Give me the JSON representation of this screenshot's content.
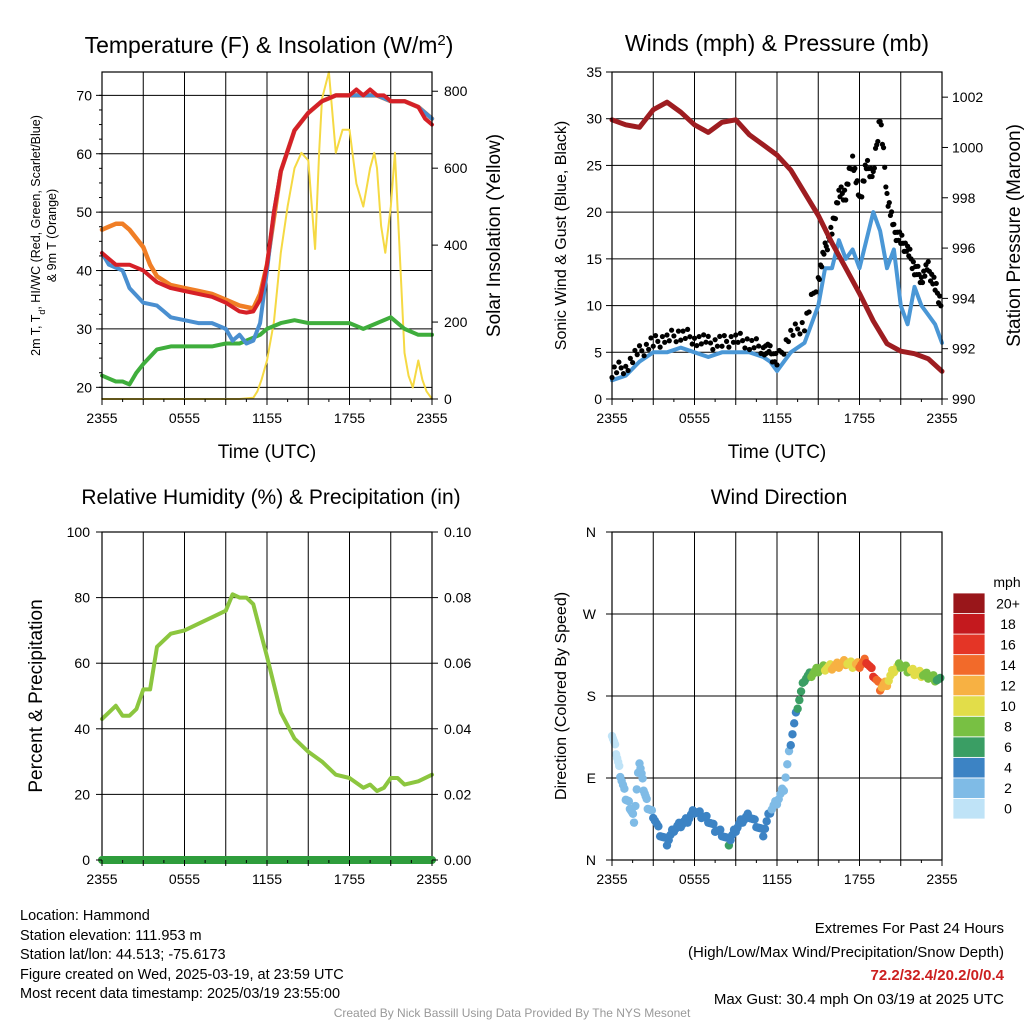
{
  "colors": {
    "red": "#d62027",
    "orange": "#f07e26",
    "blue": "#4a8fd0",
    "green": "#3fae3c",
    "yellow": "#f5d943",
    "maroon": "#9e1d21",
    "lightblue": "#4a97d6",
    "rh": "#8cc63f",
    "precip": "#2e9d3c",
    "extremes": "#cc1f1f"
  },
  "time_ticks": [
    "2355",
    "0555",
    "1155",
    "1755",
    "2355"
  ],
  "panels": {
    "temp": {
      "title": "Temperature (F) & Insolation (W/m²)",
      "title_main": "Temperature (F) & Insolation (W/m",
      "title_sup": "2",
      "title_end": ")",
      "ylabel_line1": "2m T, T",
      "ylabel_sub": "d",
      "ylabel_line1b": ", HI/WC (Red, Green, Scarlet/Blue)",
      "ylabel_line2": "& 9m T (Orange)",
      "y2label": "Solar Insolation (Yellow)",
      "xlabel": "Time (UTC)",
      "yticks": [
        "20",
        "30",
        "40",
        "50",
        "60",
        "70"
      ],
      "y2ticks": [
        "0",
        "200",
        "400",
        "600",
        "800"
      ]
    },
    "wind": {
      "title": "Winds (mph) & Pressure (mb)",
      "ylabel": "Sonic Wind & Gust (Blue, Black)",
      "y2label": "Station Pressure (Maroon)",
      "xlabel": "Time (UTC)",
      "yticks": [
        "0",
        "5",
        "10",
        "15",
        "20",
        "25",
        "30",
        "35"
      ],
      "y2ticks": [
        "990",
        "992",
        "994",
        "996",
        "998",
        "1000",
        "1002"
      ]
    },
    "rh": {
      "title": "Relative Humidity (%) & Precipitation (in)",
      "ylabel": "Percent & Precipitation",
      "yticks": [
        "0",
        "20",
        "40",
        "60",
        "80",
        "100"
      ],
      "y2ticks": [
        "0.00",
        "0.02",
        "0.04",
        "0.06",
        "0.08",
        "0.10"
      ]
    },
    "dir": {
      "title": "Wind Direction",
      "ylabel": "Direction (Colored By Speed)",
      "yticks": [
        "N",
        "E",
        "S",
        "W",
        "N"
      ],
      "colorbar_title": "mph",
      "colorbar_labels": [
        "0",
        "2",
        "4",
        "6",
        "8",
        "10",
        "12",
        "14",
        "16",
        "18",
        "20+"
      ],
      "colorbar_colors": [
        "#bfe3f7",
        "#7fbbe6",
        "#3c83c4",
        "#3a9e64",
        "#78c043",
        "#e2dd49",
        "#f7b143",
        "#f26a2a",
        "#e43526",
        "#c4191e",
        "#99161a"
      ]
    }
  },
  "chart_data": [
    {
      "type": "line",
      "title": "Temperature (F) & Insolation (W/m²)",
      "xlabel": "Time (UTC)",
      "ylabel": "2m T, Td, HI/WC (Red, Green, Scarlet/Blue) & 9m T (Orange)",
      "y2label": "Solar Insolation (Yellow)",
      "x": [
        "2355",
        "0555",
        "1155",
        "1755",
        "2355"
      ],
      "ylim": [
        18,
        74
      ],
      "y2lim": [
        0,
        850
      ],
      "xlim": [
        0,
        24
      ],
      "series": [
        {
          "name": "2m T",
          "axis": "left",
          "x": [
            0,
            0.5,
            1,
            2,
            3,
            3.5,
            4,
            5,
            6,
            7,
            8,
            9,
            10,
            10.5,
            11,
            11.5,
            12,
            12.5,
            13,
            14,
            15,
            16,
            17,
            18,
            18.5,
            19,
            19.5,
            20,
            20.5,
            21,
            22,
            23,
            23.5,
            24
          ],
          "values": [
            43,
            42,
            41,
            41,
            40,
            39,
            38,
            37,
            36.5,
            36,
            35.5,
            34.5,
            33,
            32.8,
            33,
            35,
            41,
            50,
            57,
            64,
            67,
            69,
            70,
            70,
            71,
            70,
            71,
            70,
            70,
            69,
            69,
            68,
            66,
            65
          ]
        },
        {
          "name": "9m T",
          "axis": "left",
          "x": [
            0,
            0.5,
            1,
            1.5,
            2,
            3,
            3.5,
            4,
            5,
            6,
            7,
            8,
            9,
            10,
            11,
            11.5,
            12,
            12.5,
            13,
            14,
            15,
            16,
            17,
            18,
            19,
            20,
            21,
            22,
            23,
            24
          ],
          "values": [
            47,
            47.5,
            48,
            48,
            47,
            44,
            41,
            39,
            37.5,
            37,
            36.5,
            36,
            35,
            34,
            33.5,
            36,
            41,
            49,
            57,
            64,
            67,
            69,
            70,
            70,
            70,
            70,
            69,
            69,
            68,
            66
          ]
        },
        {
          "name": "HI/WC",
          "axis": "left",
          "x": [
            0,
            0.5,
            1,
            1.5,
            2,
            3,
            4,
            4.5,
            5,
            6,
            7,
            8,
            9,
            9.5,
            10,
            10.5,
            11,
            11.5,
            12,
            12.5,
            13,
            14,
            15,
            16,
            17,
            18,
            19,
            20,
            21,
            22,
            23,
            24
          ],
          "values": [
            43,
            41,
            40.5,
            40,
            37,
            34.5,
            34,
            33,
            32,
            31.5,
            31,
            31,
            30,
            28,
            29,
            27.5,
            28,
            31,
            40,
            50,
            57,
            64,
            67,
            69,
            70,
            70,
            70,
            70,
            69,
            69,
            68,
            66
          ]
        },
        {
          "name": "2m Td",
          "axis": "left",
          "x": [
            0,
            0.5,
            1,
            1.5,
            2,
            2.5,
            3,
            4,
            5,
            6,
            7,
            8,
            9,
            10,
            10.5,
            11,
            11.5,
            12,
            12.5,
            13,
            14,
            15,
            16,
            17,
            18,
            19,
            20,
            21,
            22,
            23,
            24
          ],
          "values": [
            22,
            21.5,
            21,
            21,
            20.5,
            22.5,
            24,
            26.5,
            27,
            27,
            27,
            27,
            27.5,
            27.5,
            28,
            28.5,
            29,
            30,
            30.5,
            31,
            31.5,
            31,
            31,
            31,
            31,
            30,
            31,
            32,
            30,
            29,
            29
          ]
        },
        {
          "name": "Solar Insolation",
          "axis": "right",
          "x": [
            0,
            10,
            11,
            11.3,
            11.6,
            12,
            12.5,
            13,
            13.5,
            14,
            14.5,
            15,
            15.5,
            15.8,
            16,
            16.5,
            17,
            17.5,
            18,
            18.5,
            19,
            19.5,
            19.8,
            20,
            20.3,
            20.6,
            21,
            21.3,
            21.6,
            22,
            22.3,
            22.6,
            23,
            23.3,
            23.6,
            24
          ],
          "values": [
            0,
            0,
            3,
            20,
            50,
            100,
            200,
            380,
            500,
            600,
            640,
            620,
            390,
            650,
            780,
            850,
            640,
            700,
            700,
            560,
            500,
            600,
            640,
            600,
            450,
            380,
            500,
            640,
            420,
            120,
            60,
            30,
            100,
            50,
            20,
            0
          ]
        }
      ]
    },
    {
      "type": "line",
      "title": "Winds (mph) & Pressure (mb)",
      "xlabel": "Time (UTC)",
      "ylabel": "Sonic Wind & Gust (Blue, Black)",
      "y2label": "Station Pressure (Maroon)",
      "x": [
        "2355",
        "0555",
        "1155",
        "1755",
        "2355"
      ],
      "ylim": [
        0,
        35
      ],
      "y2lim": [
        990,
        1003
      ],
      "xlim": [
        0,
        24
      ],
      "series": [
        {
          "name": "Sonic Wind",
          "axis": "left",
          "x": [
            0,
            1,
            2,
            3,
            4,
            5,
            6,
            7,
            8,
            9,
            10,
            11,
            11.5,
            12,
            13,
            14,
            15,
            15.5,
            16,
            16.5,
            17,
            17.5,
            18,
            18.5,
            19,
            19.5,
            20,
            20.5,
            21,
            21.5,
            22,
            22.5,
            23,
            23.5,
            24
          ],
          "values": [
            2,
            2.5,
            4,
            5,
            5,
            5.5,
            5,
            4.5,
            5,
            5,
            5,
            4.5,
            4,
            3,
            5,
            6,
            10,
            14,
            14,
            17,
            15,
            16,
            14,
            17,
            20,
            18,
            14,
            16,
            10,
            8,
            12,
            10,
            9,
            8,
            6
          ]
        },
        {
          "name": "Gust",
          "axis": "left",
          "x": [
            0,
            1,
            2,
            3,
            4,
            5,
            6,
            7,
            8,
            9,
            10,
            11,
            11.5,
            12,
            13,
            14,
            15,
            15.5,
            16,
            16.5,
            17,
            17.5,
            18,
            18.5,
            19,
            19.5,
            20,
            20.5,
            21,
            21.5,
            22,
            22.5,
            23,
            23.5,
            24
          ],
          "values": [
            3,
            3.5,
            5,
            6,
            6.5,
            7,
            6.5,
            6,
            6,
            6.5,
            6,
            5.5,
            5,
            4,
            7,
            8,
            13,
            16,
            18,
            22,
            22,
            26,
            21,
            25,
            24,
            30.4,
            22,
            18,
            17,
            16,
            14,
            13,
            14,
            12,
            10
          ]
        },
        {
          "name": "Station Pressure",
          "axis": "right",
          "x": [
            0,
            1,
            2,
            3,
            4,
            5,
            6,
            7,
            8,
            9,
            10,
            11,
            12,
            13,
            14,
            15,
            16,
            17,
            18,
            19,
            20,
            21,
            22,
            23,
            24
          ],
          "values": [
            1001.1,
            1000.9,
            1000.8,
            1001.5,
            1001.8,
            1001.4,
            1000.9,
            1000.6,
            1001,
            1001.1,
            1000.5,
            1000.1,
            999.7,
            999.1,
            998.2,
            997.3,
            996.2,
            995.2,
            994.2,
            993.1,
            992.2,
            991.9,
            991.8,
            991.6,
            991.1
          ]
        }
      ]
    },
    {
      "type": "line",
      "title": "Relative Humidity (%) & Precipitation (in)",
      "ylabel": "Percent & Precipitation",
      "x": [
        "2355",
        "0555",
        "1155",
        "1755",
        "2355"
      ],
      "ylim": [
        0,
        100
      ],
      "y2lim": [
        0,
        0.1
      ],
      "xlim": [
        0,
        24
      ],
      "series": [
        {
          "name": "Relative Humidity",
          "axis": "left",
          "x": [
            0,
            0.5,
            1,
            1.5,
            2,
            2.5,
            3,
            3.5,
            4,
            5,
            6,
            7,
            8,
            9,
            9.5,
            10,
            10.5,
            11,
            11.5,
            12,
            13,
            14,
            15,
            16,
            17,
            18,
            19,
            19.5,
            20,
            20.5,
            21,
            21.5,
            22,
            23,
            24
          ],
          "values": [
            43,
            45,
            47,
            44,
            44,
            46,
            52,
            52,
            65,
            69,
            70,
            72,
            74,
            76,
            81,
            80,
            80,
            78,
            70,
            62,
            45,
            37,
            33,
            30,
            26,
            25,
            22,
            23,
            21,
            22,
            25,
            25,
            23,
            24,
            26
          ]
        },
        {
          "name": "Precipitation",
          "axis": "right",
          "x": [
            0,
            24
          ],
          "values": [
            0,
            0
          ]
        }
      ]
    },
    {
      "type": "scatter",
      "title": "Wind Direction",
      "ylabel": "Direction (Colored By Speed)",
      "x": [
        "2355",
        "0555",
        "1155",
        "1755",
        "2355"
      ],
      "yticks": [
        "N",
        "E",
        "S",
        "W",
        "N"
      ],
      "ylim": [
        0,
        360
      ],
      "xlim": [
        0,
        24
      ],
      "series": [
        {
          "name": "Direction",
          "x": [
            0,
            0.3,
            0.6,
            1,
            1.3,
            1.6,
            2,
            2.3,
            2.6,
            3,
            3.5,
            4,
            4.5,
            5,
            5.5,
            6,
            6.5,
            7,
            7.5,
            8,
            8.5,
            9,
            9.5,
            10,
            10.5,
            11,
            11.5,
            12,
            12.5,
            13,
            13.5,
            14,
            14.5,
            15,
            15.5,
            16,
            16.5,
            17,
            17.5,
            18,
            18.5,
            19,
            19.5,
            20,
            20.5,
            21,
            21.5,
            22,
            22.5,
            23,
            23.5,
            24
          ],
          "values": [
            140,
            120,
            95,
            70,
            60,
            45,
            110,
            80,
            60,
            50,
            30,
            20,
            35,
            40,
            45,
            55,
            50,
            45,
            35,
            30,
            20,
            35,
            45,
            50,
            40,
            30,
            55,
            65,
            80,
            130,
            170,
            200,
            205,
            210,
            212,
            213,
            215,
            218,
            215,
            215,
            220,
            205,
            190,
            195,
            210,
            215,
            210,
            207,
            205,
            203,
            200,
            197
          ],
          "speeds": [
            1,
            1,
            2,
            2,
            3,
            2,
            2,
            3,
            3,
            4,
            4,
            4,
            4,
            4,
            4,
            4,
            4,
            4,
            4,
            5,
            6,
            5,
            4,
            4,
            4,
            4,
            4,
            3,
            2,
            4,
            6,
            7,
            8,
            9,
            10,
            12,
            13,
            12,
            11,
            14,
            16,
            17,
            14,
            12,
            11,
            9,
            9,
            11,
            10,
            9,
            8,
            7
          ]
        }
      ]
    }
  ],
  "info": {
    "location": "Location: Hammond",
    "elevation": "Station elevation: 111.953 m",
    "latlon": "Station lat/lon: 44.513; -75.6173",
    "created": "Figure created on Wed, 2025-03-19, at 23:59 UTC",
    "recent": "Most recent data timestamp: 2025/03/19 23:55:00"
  },
  "extremes": {
    "line1": "Extremes For Past 24 Hours",
    "line2": "(High/Low/Max Wind/Precipitation/Snow Depth)",
    "values": "72.2/32.4/20.2/0/0.4",
    "gust": "Max Gust: 30.4 mph On 03/19 at 2025 UTC"
  },
  "footer": "Created By Nick Bassill Using Data Provided By The NYS Mesonet"
}
